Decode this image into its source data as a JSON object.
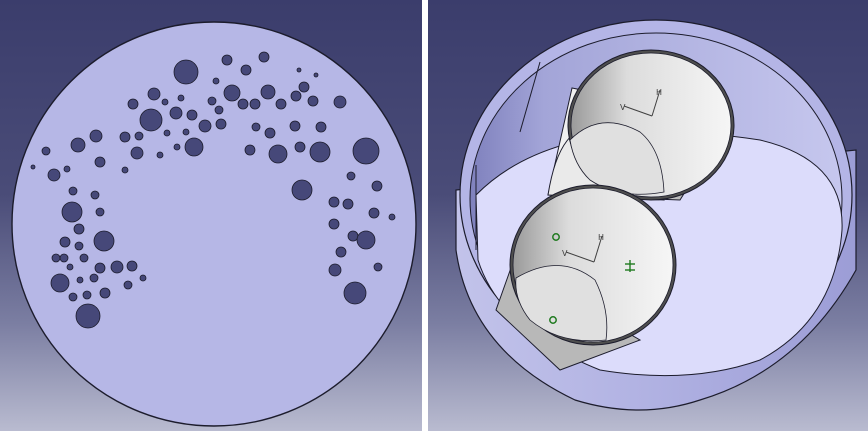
{
  "viewports": {
    "left": {
      "view": "top",
      "part": "perforated-disc"
    },
    "right": {
      "view": "isometric",
      "part": "cylindrical-housing-with-two-tubes"
    }
  },
  "colors": {
    "background_top": "#3b3d6c",
    "background_bottom": "#b9bbd0",
    "part_fill": "#b6b7e6",
    "hole_fill": "#464879",
    "inner_floor": "#dcdcfb",
    "tube_white": "#f5f5f5",
    "axis_line": "#404040",
    "constraint_green": "#1f7a1f"
  },
  "glyphs": {
    "axis_h": "H",
    "axis_v": "V"
  },
  "icons": [
    "axis-system-icon",
    "constraint-symbol-icon",
    "point-marker-icon"
  ]
}
